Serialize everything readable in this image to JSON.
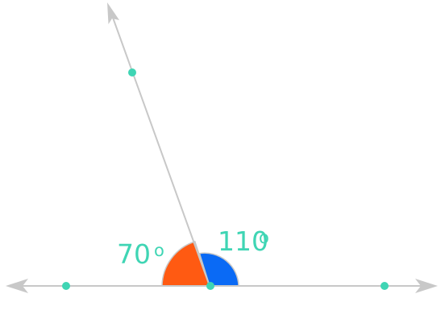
{
  "diagram": {
    "colors": {
      "line": "#c8c8c8",
      "point": "#3fd5b4",
      "angle_left_fill": "#ff5a12",
      "angle_right_fill": "#0a6af5",
      "label": "#3fd5b4"
    },
    "angles": [
      {
        "name": "left-angle",
        "degrees": 70,
        "value_text": "70",
        "degree_text": "o"
      },
      {
        "name": "right-angle",
        "degrees": 110,
        "value_text": "110",
        "degree_text": "o"
      }
    ],
    "icons": [
      "arrowhead-icon",
      "point-icon"
    ]
  }
}
